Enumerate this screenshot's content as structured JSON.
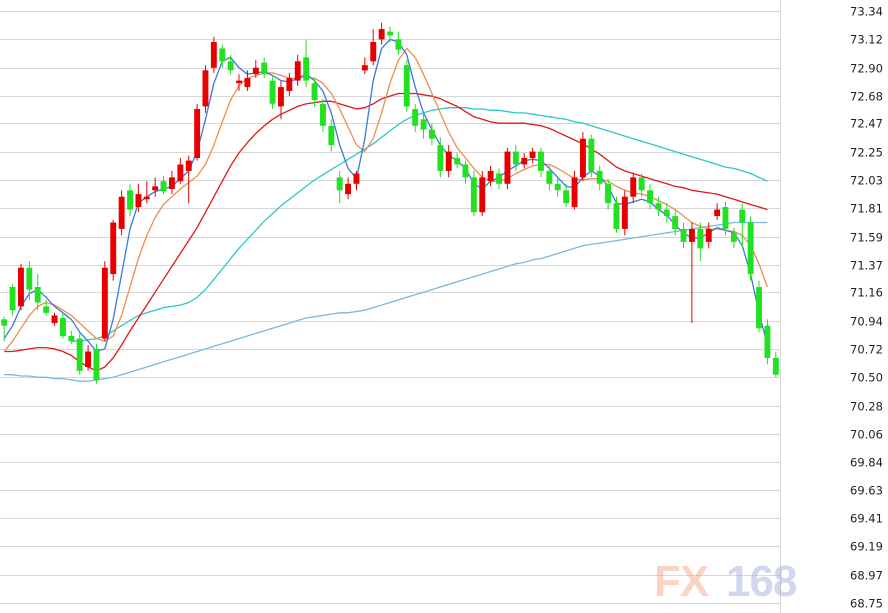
{
  "chart_data": {
    "type": "candlestick",
    "y_axis": {
      "position": "right",
      "ylim": [
        68.75,
        73.34
      ],
      "ticks": [
        "73.34",
        "73.12",
        "72.90",
        "72.68",
        "72.47",
        "72.25",
        "72.03",
        "71.81",
        "71.59",
        "71.37",
        "71.16",
        "70.94",
        "70.72",
        "70.50",
        "70.28",
        "70.06",
        "69.84",
        "69.63",
        "69.41",
        "69.19",
        "68.97",
        "68.75"
      ]
    },
    "grid": "horizontal",
    "colors": {
      "up": "#e80000",
      "down": "#22e022",
      "ma_fast": "#3a78e0",
      "ma_slow": "#e89050",
      "ma_red": "#e01818",
      "ma_cyan": "#2cc8c8",
      "ma_long": "#7ab8e0",
      "grid": "#d8d8d8"
    },
    "candles": [
      [
        70.95,
        70.9,
        70.97,
        70.78
      ],
      [
        71.2,
        71.02,
        71.22,
        70.98
      ],
      [
        71.05,
        71.35,
        71.38,
        71.02
      ],
      [
        71.35,
        71.18,
        71.4,
        71.1
      ],
      [
        71.2,
        71.08,
        71.3,
        71.02
      ],
      [
        71.05,
        71.0,
        71.1,
        70.98
      ],
      [
        70.92,
        70.98,
        71.0,
        70.9
      ],
      [
        70.96,
        70.82,
        71.0,
        70.8
      ],
      [
        70.82,
        70.78,
        70.86,
        70.76
      ],
      [
        70.8,
        70.55,
        70.84,
        70.52
      ],
      [
        70.58,
        70.7,
        70.75,
        70.55
      ],
      [
        70.72,
        70.48,
        70.76,
        70.45
      ],
      [
        70.8,
        71.35,
        71.4,
        70.78
      ],
      [
        71.3,
        71.7,
        71.72,
        71.25
      ],
      [
        71.65,
        71.9,
        71.95,
        71.6
      ],
      [
        71.95,
        71.8,
        72.0,
        71.75
      ],
      [
        71.82,
        71.92,
        72.0,
        71.78
      ],
      [
        71.88,
        71.9,
        72.02,
        71.85
      ],
      [
        71.95,
        71.98,
        72.05,
        71.9
      ],
      [
        72.02,
        71.94,
        72.06,
        71.92
      ],
      [
        71.96,
        72.05,
        72.1,
        71.92
      ],
      [
        72.02,
        72.15,
        72.2,
        72.0
      ],
      [
        72.1,
        72.18,
        72.22,
        71.85
      ],
      [
        72.2,
        72.58,
        72.62,
        72.18
      ],
      [
        72.6,
        72.88,
        72.92,
        72.55
      ],
      [
        72.9,
        73.1,
        73.14,
        72.86
      ],
      [
        73.05,
        72.95,
        73.08,
        72.9
      ],
      [
        72.95,
        72.88,
        73.0,
        72.85
      ],
      [
        72.78,
        72.8,
        72.85,
        72.72
      ],
      [
        72.75,
        72.82,
        72.88,
        72.72
      ],
      [
        72.85,
        72.9,
        72.96,
        72.82
      ],
      [
        72.94,
        72.85,
        72.98,
        72.82
      ],
      [
        72.8,
        72.62,
        72.84,
        72.58
      ],
      [
        72.6,
        72.75,
        72.8,
        72.5
      ],
      [
        72.72,
        72.82,
        72.86,
        72.68
      ],
      [
        72.8,
        72.95,
        73.0,
        72.76
      ],
      [
        72.98,
        72.8,
        73.12,
        72.75
      ],
      [
        72.78,
        72.65,
        72.82,
        72.6
      ],
      [
        72.62,
        72.45,
        72.66,
        72.4
      ],
      [
        72.45,
        72.3,
        72.5,
        72.25
      ],
      [
        72.05,
        71.95,
        72.1,
        71.85
      ],
      [
        71.92,
        72.0,
        72.05,
        71.88
      ],
      [
        72.0,
        72.08,
        72.1,
        71.95
      ],
      [
        72.88,
        72.92,
        72.98,
        72.85
      ],
      [
        72.95,
        73.1,
        73.2,
        72.92
      ],
      [
        73.12,
        73.2,
        73.25,
        73.08
      ],
      [
        73.18,
        73.15,
        73.22,
        73.1
      ],
      [
        73.12,
        73.04,
        73.18,
        73.0
      ],
      [
        72.92,
        72.6,
        72.96,
        72.56
      ],
      [
        72.58,
        72.45,
        72.62,
        72.4
      ],
      [
        72.5,
        72.42,
        72.55,
        72.35
      ],
      [
        72.42,
        72.35,
        72.47,
        72.3
      ],
      [
        72.3,
        72.1,
        72.36,
        72.05
      ],
      [
        72.1,
        72.25,
        72.3,
        72.05
      ],
      [
        72.2,
        72.15,
        72.24,
        72.12
      ],
      [
        72.15,
        72.05,
        72.18,
        72.0
      ],
      [
        72.05,
        71.78,
        72.1,
        71.75
      ],
      [
        71.78,
        72.05,
        72.1,
        71.75
      ],
      [
        72.02,
        72.1,
        72.14,
        71.98
      ],
      [
        72.08,
        72.0,
        72.12,
        71.96
      ],
      [
        72.0,
        72.25,
        72.28,
        71.96
      ],
      [
        72.25,
        72.15,
        72.3,
        72.1
      ],
      [
        72.15,
        72.2,
        72.24,
        72.12
      ],
      [
        72.2,
        72.25,
        72.28,
        72.16
      ],
      [
        72.25,
        72.1,
        72.28,
        72.05
      ],
      [
        72.1,
        72.0,
        72.14,
        71.95
      ],
      [
        72.0,
        71.95,
        72.05,
        71.9
      ],
      [
        71.95,
        71.85,
        72.0,
        71.82
      ],
      [
        71.82,
        72.05,
        72.1,
        71.8
      ],
      [
        72.05,
        72.35,
        72.4,
        72.02
      ],
      [
        72.35,
        72.1,
        72.38,
        72.05
      ],
      [
        72.1,
        72.0,
        72.14,
        71.95
      ],
      [
        72.0,
        71.85,
        72.04,
        71.8
      ],
      [
        71.85,
        71.65,
        71.9,
        71.62
      ],
      [
        71.65,
        71.9,
        71.95,
        71.6
      ],
      [
        71.9,
        72.05,
        72.08,
        71.85
      ],
      [
        72.05,
        71.95,
        72.08,
        71.9
      ],
      [
        71.95,
        71.85,
        72.0,
        71.8
      ],
      [
        71.85,
        71.8,
        71.9,
        71.75
      ],
      [
        71.8,
        71.75,
        71.85,
        71.7
      ],
      [
        71.75,
        71.65,
        71.8,
        71.6
      ],
      [
        71.65,
        71.55,
        71.7,
        71.5
      ],
      [
        71.55,
        71.65,
        71.7,
        70.92
      ],
      [
        71.65,
        71.5,
        71.7,
        71.4
      ],
      [
        71.55,
        71.65,
        71.7,
        71.5
      ],
      [
        71.75,
        71.8,
        71.85,
        71.72
      ],
      [
        71.82,
        71.65,
        71.86,
        71.6
      ],
      [
        71.62,
        71.55,
        71.66,
        71.5
      ],
      [
        71.8,
        71.7,
        71.85,
        71.5
      ],
      [
        71.7,
        71.3,
        71.75,
        71.25
      ],
      [
        71.2,
        70.88,
        71.25,
        70.85
      ],
      [
        70.9,
        70.65,
        70.95,
        70.6
      ],
      [
        70.65,
        70.52,
        70.7,
        70.5
      ]
    ],
    "ma_fast": [
      70.8,
      70.9,
      71.05,
      71.15,
      71.18,
      71.12,
      71.05,
      71.0,
      70.95,
      70.85,
      70.78,
      70.7,
      70.72,
      70.95,
      71.3,
      71.65,
      71.85,
      71.9,
      71.94,
      71.96,
      71.98,
      72.04,
      72.1,
      72.25,
      72.5,
      72.78,
      72.95,
      72.98,
      72.9,
      72.85,
      72.86,
      72.87,
      72.84,
      72.8,
      72.79,
      72.82,
      72.85,
      72.8,
      72.72,
      72.55,
      72.3,
      72.12,
      72.04,
      72.35,
      72.8,
      73.05,
      73.12,
      73.1,
      73.0,
      72.75,
      72.55,
      72.42,
      72.3,
      72.22,
      72.18,
      72.12,
      72.0,
      71.96,
      72.02,
      72.05,
      72.1,
      72.14,
      72.18,
      72.19,
      72.18,
      72.12,
      72.05,
      71.98,
      71.97,
      72.05,
      72.1,
      72.06,
      71.98,
      71.85,
      71.84,
      71.86,
      71.88,
      71.86,
      71.8,
      71.76,
      71.68,
      71.62,
      71.58,
      71.58,
      71.62,
      71.66,
      71.64,
      71.62,
      71.52,
      71.3,
      71.0,
      70.75
    ],
    "ma_slow": [
      70.7,
      70.78,
      70.88,
      70.98,
      71.05,
      71.08,
      71.06,
      71.02,
      70.98,
      70.92,
      70.86,
      70.8,
      70.78,
      70.82,
      70.98,
      71.2,
      71.42,
      71.6,
      71.74,
      71.84,
      71.9,
      71.96,
      72.01,
      72.06,
      72.15,
      72.3,
      72.48,
      72.65,
      72.76,
      72.82,
      72.84,
      72.86,
      72.86,
      72.84,
      72.82,
      72.82,
      72.83,
      72.82,
      72.78,
      72.7,
      72.58,
      72.44,
      72.3,
      72.25,
      72.35,
      72.55,
      72.78,
      72.96,
      73.05,
      72.98,
      72.85,
      72.7,
      72.55,
      72.4,
      72.28,
      72.2,
      72.12,
      72.05,
      72.02,
      72.02,
      72.04,
      72.08,
      72.11,
      72.14,
      72.15,
      72.15,
      72.12,
      72.08,
      72.04,
      72.03,
      72.04,
      72.04,
      72.02,
      71.98,
      71.95,
      71.93,
      71.92,
      71.9,
      71.87,
      71.84,
      71.8,
      71.75,
      71.7,
      71.67,
      71.65,
      71.65,
      71.64,
      71.63,
      71.6,
      71.52,
      71.38,
      71.2
    ],
    "ma_red": [
      70.7,
      70.7,
      70.71,
      70.72,
      70.73,
      70.73,
      70.72,
      70.7,
      70.67,
      70.62,
      70.58,
      70.55,
      70.58,
      70.65,
      70.75,
      70.86,
      70.96,
      71.06,
      71.16,
      71.26,
      71.36,
      71.46,
      71.56,
      71.66,
      71.78,
      71.9,
      72.02,
      72.14,
      72.24,
      72.32,
      72.39,
      72.45,
      72.5,
      72.54,
      72.57,
      72.6,
      72.62,
      72.63,
      72.64,
      72.64,
      72.62,
      72.6,
      72.58,
      72.59,
      72.62,
      72.66,
      72.68,
      72.7,
      72.7,
      72.7,
      72.69,
      72.68,
      72.66,
      72.63,
      72.6,
      72.56,
      72.52,
      72.5,
      72.48,
      72.47,
      72.47,
      72.47,
      72.47,
      72.46,
      72.45,
      72.43,
      72.4,
      72.37,
      72.34,
      72.31,
      72.27,
      72.23,
      72.18,
      72.13,
      72.1,
      72.08,
      72.06,
      72.04,
      72.02,
      72.0,
      71.98,
      71.97,
      71.95,
      71.94,
      71.93,
      71.92,
      71.9,
      71.88,
      71.86,
      71.84,
      71.82,
      71.8
    ],
    "ma_cyan": [
      null,
      null,
      null,
      null,
      null,
      null,
      null,
      null,
      70.78,
      70.78,
      70.79,
      70.8,
      70.82,
      70.86,
      70.9,
      70.94,
      70.98,
      71.0,
      71.02,
      71.04,
      71.05,
      71.06,
      71.08,
      71.12,
      71.18,
      71.26,
      71.34,
      71.42,
      71.5,
      71.57,
      71.64,
      71.71,
      71.77,
      71.83,
      71.88,
      71.93,
      71.98,
      72.03,
      72.07,
      72.11,
      72.15,
      72.19,
      72.23,
      72.27,
      72.31,
      72.36,
      72.41,
      72.46,
      72.5,
      72.53,
      72.55,
      72.57,
      72.58,
      72.59,
      72.59,
      72.59,
      72.58,
      72.58,
      72.57,
      72.57,
      72.56,
      72.55,
      72.55,
      72.54,
      72.53,
      72.52,
      72.51,
      72.5,
      72.48,
      72.47,
      72.45,
      72.43,
      72.41,
      72.39,
      72.37,
      72.35,
      72.33,
      72.31,
      72.29,
      72.27,
      72.25,
      72.23,
      72.21,
      72.19,
      72.17,
      72.15,
      72.13,
      72.12,
      72.1,
      72.08,
      72.05,
      72.02
    ],
    "ma_long": [
      70.52,
      70.52,
      70.51,
      70.51,
      70.5,
      70.5,
      70.49,
      70.49,
      70.48,
      70.47,
      70.47,
      70.48,
      70.49,
      70.5,
      70.52,
      70.54,
      70.56,
      70.58,
      70.6,
      70.62,
      70.64,
      70.66,
      70.68,
      70.7,
      70.72,
      70.74,
      70.76,
      70.78,
      70.8,
      70.82,
      70.84,
      70.86,
      70.88,
      70.9,
      70.92,
      70.94,
      70.96,
      70.97,
      70.98,
      70.99,
      71.0,
      71.0,
      71.01,
      71.02,
      71.04,
      71.06,
      71.08,
      71.1,
      71.12,
      71.14,
      71.16,
      71.18,
      71.2,
      71.22,
      71.24,
      71.26,
      71.28,
      71.3,
      71.32,
      71.34,
      71.36,
      71.38,
      71.39,
      71.41,
      71.42,
      71.44,
      71.46,
      71.48,
      71.5,
      71.52,
      71.53,
      71.54,
      71.55,
      71.56,
      71.57,
      71.58,
      71.59,
      71.6,
      71.61,
      71.62,
      71.63,
      71.64,
      71.65,
      71.66,
      71.67,
      71.68,
      71.69,
      71.7,
      71.7,
      71.7,
      71.7,
      71.7
    ]
  },
  "watermark": {
    "part1": "FX",
    "part2": "168"
  }
}
